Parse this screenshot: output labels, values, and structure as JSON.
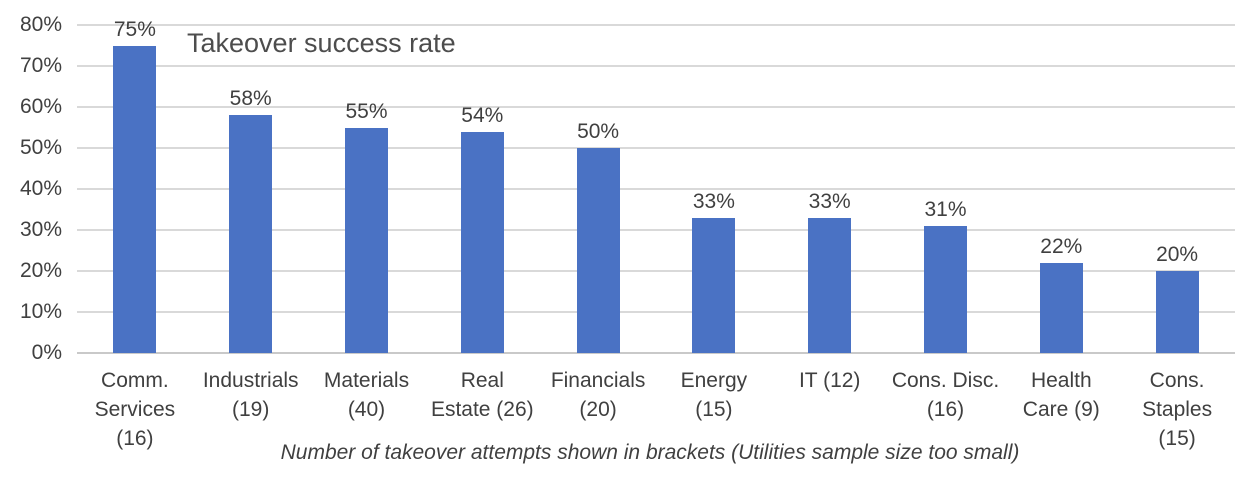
{
  "chart_data": {
    "type": "bar",
    "title": "Takeover success rate",
    "footnote": "Number of takeover attempts shown in brackets (Utilities sample size too small)",
    "categories": [
      "Comm. Services (16)",
      "Industrials (19)",
      "Materials (40)",
      "Real Estate (26)",
      "Financials (20)",
      "Energy (15)",
      "IT (12)",
      "Cons. Disc. (16)",
      "Health Care (9)",
      "Cons. Staples (15)"
    ],
    "category_lines": [
      [
        "Comm.",
        "Services",
        "(16)"
      ],
      [
        "Industrials",
        "(19)"
      ],
      [
        "Materials",
        "(40)"
      ],
      [
        "Real",
        "Estate (26)"
      ],
      [
        "Financials",
        "(20)"
      ],
      [
        "Energy",
        "(15)"
      ],
      [
        "IT (12)"
      ],
      [
        "Cons. Disc.",
        "(16)"
      ],
      [
        "Health",
        "Care (9)"
      ],
      [
        "Cons.",
        "Staples",
        "(15)"
      ]
    ],
    "values": [
      75,
      58,
      55,
      54,
      50,
      33,
      33,
      31,
      22,
      20
    ],
    "value_labels": [
      "75%",
      "58%",
      "55%",
      "54%",
      "50%",
      "33%",
      "33%",
      "31%",
      "22%",
      "20%"
    ],
    "xlabel": "",
    "ylabel": "",
    "ylim": [
      0,
      80
    ],
    "ytick_step": 10,
    "ytick_labels": [
      "0%",
      "10%",
      "20%",
      "30%",
      "40%",
      "50%",
      "60%",
      "70%",
      "80%"
    ],
    "grid": true,
    "legend": false,
    "bar_color": "#4a72c4",
    "gridline_color": "#d9d9d9",
    "axis_line_color": "#c9c9c9",
    "text_color": "#404040"
  }
}
